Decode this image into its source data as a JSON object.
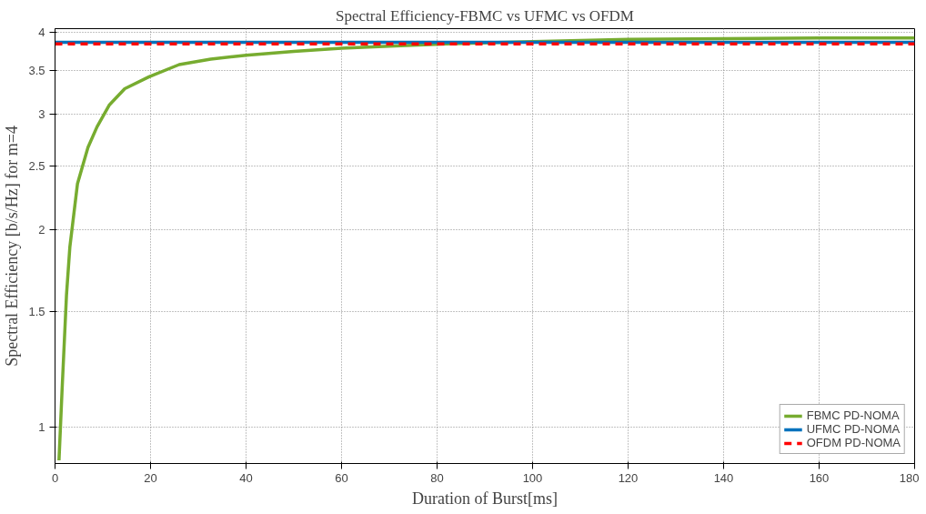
{
  "chart_data": {
    "type": "line",
    "title": "Spectral Efficiency-FBMC vs UFMC vs OFDM",
    "xlabel": "Duration of Burst[ms]",
    "ylabel": "Spectral Efficiency [b/s/Hz] for m=4",
    "log": "y",
    "xlim": [
      0,
      180
    ],
    "ylim": [
      0.88,
      4.05
    ],
    "xticks": [
      0,
      20,
      40,
      60,
      80,
      100,
      120,
      140,
      160,
      180
    ],
    "yticks": [
      1,
      1.5,
      2,
      2.5,
      3,
      3.5,
      4
    ],
    "grid": true,
    "legend": "bottom right",
    "series": [
      {
        "name": "FBMC PD-NOMA",
        "color": "#77ac30",
        "line_style": "solid",
        "x": [
          0.83,
          1.5,
          2.4,
          3.1,
          4.7,
          6.9,
          8.8,
          11.4,
          14.6,
          19.7,
          26,
          32.6,
          40,
          50,
          60,
          70,
          82,
          100,
          120,
          140,
          160,
          180
        ],
        "values": [
          0.89,
          1.15,
          1.59,
          1.88,
          2.35,
          2.67,
          2.87,
          3.1,
          3.28,
          3.42,
          3.57,
          3.64,
          3.69,
          3.74,
          3.78,
          3.81,
          3.84,
          3.87,
          3.9,
          3.91,
          3.92,
          3.92
        ]
      },
      {
        "name": "UFMC PD-NOMA",
        "color": "#0072bd",
        "line_style": "solid",
        "x": [
          0,
          180
        ],
        "values": [
          3.86,
          3.86
        ]
      },
      {
        "name": "OFDM PD-NOMA",
        "color": "#ff0000",
        "line_style": "dashed",
        "x": [
          0,
          180
        ],
        "values": [
          3.84,
          3.84
        ]
      }
    ]
  }
}
